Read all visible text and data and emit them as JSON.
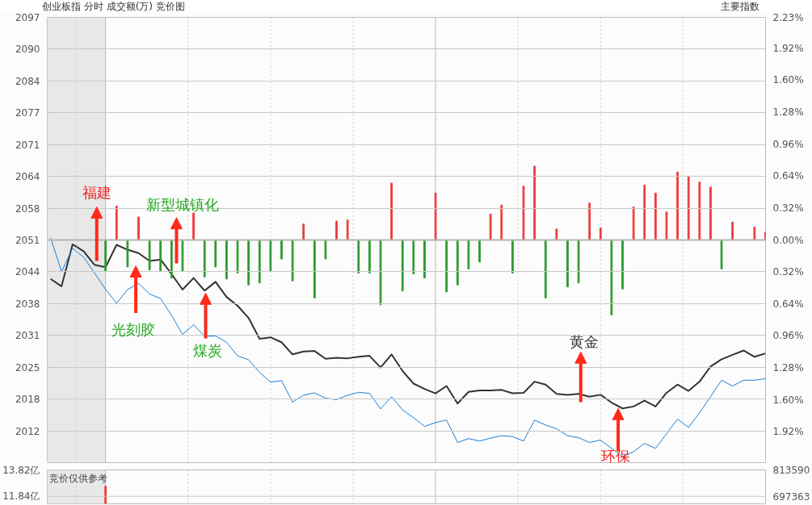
{
  "chart_data": [
    {
      "type": "line",
      "title": "创业板指   分时 成交额(万) 竞价图",
      "categories": [
        null,
        null,
        null,
        null,
        null,
        null,
        null,
        null,
        null,
        null,
        null,
        null,
        null,
        null,
        null,
        null,
        null,
        null,
        null,
        null,
        null,
        null,
        null,
        null,
        null,
        null,
        null,
        null,
        null,
        null,
        null,
        null,
        null,
        null,
        null,
        null,
        null,
        null,
        null,
        null,
        null,
        null,
        null,
        null,
        null,
        null,
        null,
        null,
        null,
        null,
        null,
        null,
        null,
        null,
        null,
        null,
        null,
        null,
        null,
        null,
        null,
        null,
        null,
        null,
        null,
        null
      ],
      "series": [
        {
          "type": "line",
          "color": "#333333",
          "values": [
            2043.0,
            2041.5,
            2050.1,
            2048.7,
            2045.9,
            2045.4,
            2050.0,
            2049.0,
            2048.3,
            2046.7,
            2047.0,
            2044.0,
            2040.8,
            2043.2,
            2040.6,
            2042.4,
            2039.3,
            2037.5,
            2035.0,
            2030.7,
            2031.0,
            2030.0,
            2027.5,
            2028.1,
            2028.2,
            2026.6,
            2026.8,
            2026.7,
            2027.0,
            2027.2,
            2024.8,
            2027.5,
            2024.1,
            2021.5,
            2020.4,
            2019.5,
            2021.0,
            2017.4,
            2019.8,
            2020.1,
            2020.1,
            2020.2,
            2019.5,
            2019.6,
            2021.9,
            2021.3,
            2019.4,
            2019.2,
            2019.4,
            2018.8,
            2019.2,
            2017.6,
            2016.4,
            2016.8,
            2018.0,
            2016.8,
            2019.6,
            2021.3,
            2020.0,
            2021.9,
            2025.0,
            2026.5,
            2027.4,
            2028.3,
            2027.0,
            2027.7
          ]
        },
        {
          "type": "line",
          "color": "#1a7fd9",
          "values": [
            2051.5,
            2044.5,
            2049.3,
            2047.5,
            2044.2,
            2040.9,
            2038.0,
            2040.8,
            2042.1,
            2039.9,
            2039.0,
            2035.5,
            2031.6,
            2033.6,
            2031.2,
            2031.3,
            2030.0,
            2027.2,
            2026.4,
            2023.8,
            2021.8,
            2022.1,
            2017.7,
            2019.1,
            2019.6,
            2018.5,
            2018.2,
            2019.1,
            2019.7,
            2019.5,
            2016.3,
            2018.8,
            2016.1,
            2014.5,
            2012.7,
            2013.5,
            2014.0,
            2009.4,
            2010.2,
            2009.7,
            2010.3,
            2010.8,
            2010.6,
            2009.7,
            2014.0,
            2013.0,
            2012.2,
            2010.8,
            2010.4,
            2009.4,
            2009.9,
            2008.2,
            2006.5,
            2007.5,
            2009.2,
            2008.2,
            2011.2,
            2014.2,
            2012.5,
            2015.5,
            2018.8,
            2022.2,
            2021.0,
            2022.2,
            2022.2,
            2022.5
          ]
        },
        {
          "type": "bar",
          "axis": "y2",
          "color": "#f03c3c",
          "values": [
            null,
            null,
            null,
            null,
            null,
            null,
            0.34,
            null,
            0.23,
            null,
            null,
            null,
            null,
            0.27,
            null,
            null,
            null,
            null,
            null,
            null,
            null,
            null,
            null,
            0.16,
            null,
            null,
            0.19,
            0.2,
            null,
            null,
            null,
            0.57,
            null,
            null,
            null,
            0.47,
            null,
            null,
            null,
            null,
            0.26,
            0.35,
            null,
            0.54,
            0.74,
            null,
            0.11,
            null,
            null,
            0.37,
            0.12,
            null,
            null,
            0.33,
            0.55,
            0.47,
            0.28,
            0.68,
            0.64,
            0.58,
            0.53,
            null,
            0.18,
            null,
            0.13,
            0.08
          ]
        },
        {
          "type": "bar",
          "axis": "y2",
          "color": "#2e9b2e",
          "values": [
            null,
            null,
            null,
            null,
            null,
            -0.31,
            null,
            -0.27,
            null,
            -0.3,
            -0.31,
            -0.38,
            -0.31,
            null,
            -0.37,
            -0.27,
            -0.39,
            -0.33,
            -0.45,
            -0.43,
            -0.31,
            -0.19,
            -0.41,
            null,
            -0.58,
            -0.19,
            null,
            null,
            -0.33,
            -0.33,
            -0.65,
            null,
            -0.51,
            -0.34,
            -0.38,
            null,
            -0.52,
            -0.45,
            -0.29,
            -0.22,
            null,
            null,
            -0.33,
            null,
            null,
            -0.58,
            null,
            -0.47,
            -0.43,
            null,
            null,
            -0.75,
            -0.49,
            null,
            null,
            null,
            null,
            null,
            null,
            null,
            null,
            -0.29,
            null,
            null,
            null,
            null
          ]
        }
      ],
      "ylim": [
        2005.26,
        2096.74
      ],
      "yticks": [
        {
          "value": 2096.74,
          "label": "2097"
        },
        {
          "value": 2090.2,
          "label": "2090"
        },
        {
          "value": 2083.67,
          "label": "2084"
        },
        {
          "value": 2077.14,
          "label": "2077"
        },
        {
          "value": 2070.6,
          "label": "2071"
        },
        {
          "value": 2064.07,
          "label": "2064"
        },
        {
          "value": 2057.53,
          "label": "2058"
        },
        2051,
        {
          "value": 2044.47,
          "label": "2044"
        },
        {
          "value": 2037.93,
          "label": "2038"
        },
        {
          "value": 2031.4,
          "label": "2031"
        },
        {
          "value": 2024.86,
          "label": "2025"
        },
        {
          "value": 2018.33,
          "label": "2018"
        },
        {
          "value": 2011.8,
          "label": "2012"
        }
      ],
      "y2lim": [
        -2.23,
        2.23
      ],
      "y2ticks": [
        {
          "value": 2.23,
          "label": "2.23%"
        },
        {
          "value": 1.92,
          "label": "1.92%"
        },
        {
          "value": 1.6,
          "label": "1.60%"
        },
        {
          "value": 1.28,
          "label": "1.28%"
        },
        {
          "value": 0.96,
          "label": "0.96%"
        },
        {
          "value": 0.64,
          "label": "0.64%"
        },
        {
          "value": 0.32,
          "label": "0.32%"
        },
        {
          "value": 0,
          "label": "0.00%"
        },
        {
          "value": -0.32,
          "label": "0.32%"
        },
        {
          "value": -0.64,
          "label": "0.64%"
        },
        {
          "value": -0.96,
          "label": "0.96%"
        },
        {
          "value": -1.28,
          "label": "1.28%"
        },
        {
          "value": -1.6,
          "label": "1.60%"
        },
        {
          "value": -1.92,
          "label": "1.92%"
        }
      ],
      "grid": true,
      "ref_lines": [
        {
          "axis": "y2",
          "value": 0,
          "color": "#b4b4b4"
        }
      ],
      "annotations": [
        "福建",
        "新型城镇化",
        "光刻胶",
        "煤炭",
        "黄金",
        "环保",
        "主要指数"
      ]
    },
    {
      "type": "bar",
      "categories": [
        null,
        null,
        null,
        null,
        null,
        null,
        null,
        null,
        null,
        null,
        null,
        null,
        null,
        null,
        null,
        null,
        null,
        null,
        null,
        null,
        null,
        null,
        null,
        null,
        null,
        null,
        null,
        null,
        null,
        null,
        null,
        null,
        null,
        null,
        null,
        null,
        null,
        null,
        null,
        null,
        null,
        null,
        null,
        null,
        null,
        null,
        null,
        null,
        null,
        null,
        null,
        null,
        null,
        null,
        null,
        null,
        null,
        null,
        null,
        null,
        null,
        null,
        null,
        null,
        null,
        null
      ],
      "series": [
        {
          "color": "#f03c3c",
          "values": [
            null,
            null,
            null,
            null,
            null,
            12.6,
            null,
            null,
            null,
            null,
            null,
            null,
            null,
            null,
            null,
            null,
            null,
            null,
            null,
            null,
            null,
            null,
            null,
            null,
            null,
            null,
            null,
            null,
            null,
            null,
            null,
            null,
            null,
            null,
            null,
            null,
            null,
            null,
            null,
            null,
            null,
            null,
            null,
            null,
            null,
            null,
            null,
            null,
            null,
            null,
            null,
            null,
            null,
            null,
            null,
            null,
            null,
            null,
            null,
            null,
            null,
            null,
            null,
            null,
            null,
            null
          ]
        }
      ],
      "ylim": [
        11.28,
        13.82
      ],
      "yticks": [
        {
          "value": 13.82,
          "label": "13.82亿"
        },
        {
          "value": 11.84,
          "label": "11.84亿"
        }
      ],
      "y2lim": [
        664580,
        813590
      ],
      "y2ticks": [
        813590,
        697363
      ],
      "grid": "x",
      "ref_lines": [
        {
          "axis": "y",
          "value": 11.84,
          "color": "#c8c8c8"
        }
      ],
      "annotations": [
        "竞价仅供参考"
      ]
    }
  ]
}
